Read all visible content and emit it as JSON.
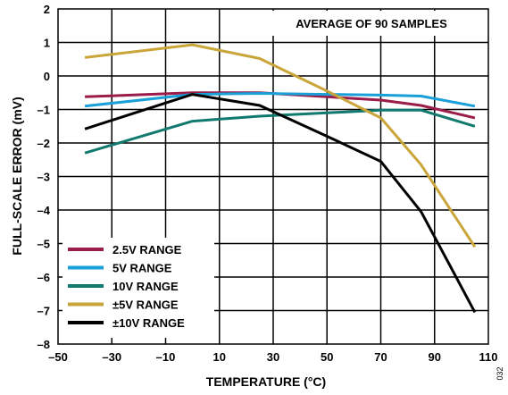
{
  "chart_data": {
    "type": "line",
    "annotation": "AVERAGE OF 90 SAMPLES",
    "xlabel": "TEMPERATURE (°C)",
    "ylabel": "FULL-SCALE ERROR (mV)",
    "xlim": [
      -50,
      110
    ],
    "ylim": [
      -8,
      2
    ],
    "xticks": [
      -50,
      -30,
      -10,
      10,
      30,
      50,
      70,
      90,
      110
    ],
    "xtick_labels": [
      "–50",
      "–30",
      "–10",
      "10",
      "30",
      "50",
      "70",
      "90",
      "110"
    ],
    "yticks": [
      2,
      1,
      0,
      -1,
      -2,
      -3,
      -4,
      -5,
      -6,
      -7,
      -8
    ],
    "ytick_labels": [
      "2",
      "1",
      "0",
      "–1",
      "–2",
      "–3",
      "–4",
      "–5",
      "–6",
      "–7",
      "–8"
    ],
    "grid": true,
    "legend_position": "bottom-left",
    "figure_id": "032",
    "series": [
      {
        "name": "2.5V RANGE",
        "color": "#9b1b4a",
        "x": [
          -40,
          0,
          25,
          50,
          70,
          85,
          105
        ],
        "y": [
          -0.62,
          -0.5,
          -0.5,
          -0.62,
          -0.72,
          -0.88,
          -1.25
        ]
      },
      {
        "name": "5V RANGE",
        "color": "#1aa0d8",
        "x": [
          -40,
          0,
          25,
          50,
          70,
          85,
          105
        ],
        "y": [
          -0.9,
          -0.55,
          -0.52,
          -0.55,
          -0.57,
          -0.6,
          -0.9
        ]
      },
      {
        "name": "10V RANGE",
        "color": "#117a6e",
        "x": [
          -40,
          0,
          25,
          50,
          70,
          85,
          105
        ],
        "y": [
          -2.3,
          -1.35,
          -1.2,
          -1.1,
          -1.02,
          -1.02,
          -1.5
        ]
      },
      {
        "name": "±5V RANGE",
        "color": "#c9a53a",
        "x": [
          -40,
          0,
          25,
          50,
          70,
          85,
          105
        ],
        "y": [
          0.55,
          0.93,
          0.52,
          -0.45,
          -1.25,
          -2.65,
          -5.1
        ]
      },
      {
        "name": "±10V RANGE",
        "color": "#000000",
        "x": [
          -40,
          0,
          25,
          50,
          70,
          85,
          105
        ],
        "y": [
          -1.58,
          -0.55,
          -0.88,
          -1.8,
          -2.55,
          -4.05,
          -7.05
        ]
      }
    ]
  }
}
